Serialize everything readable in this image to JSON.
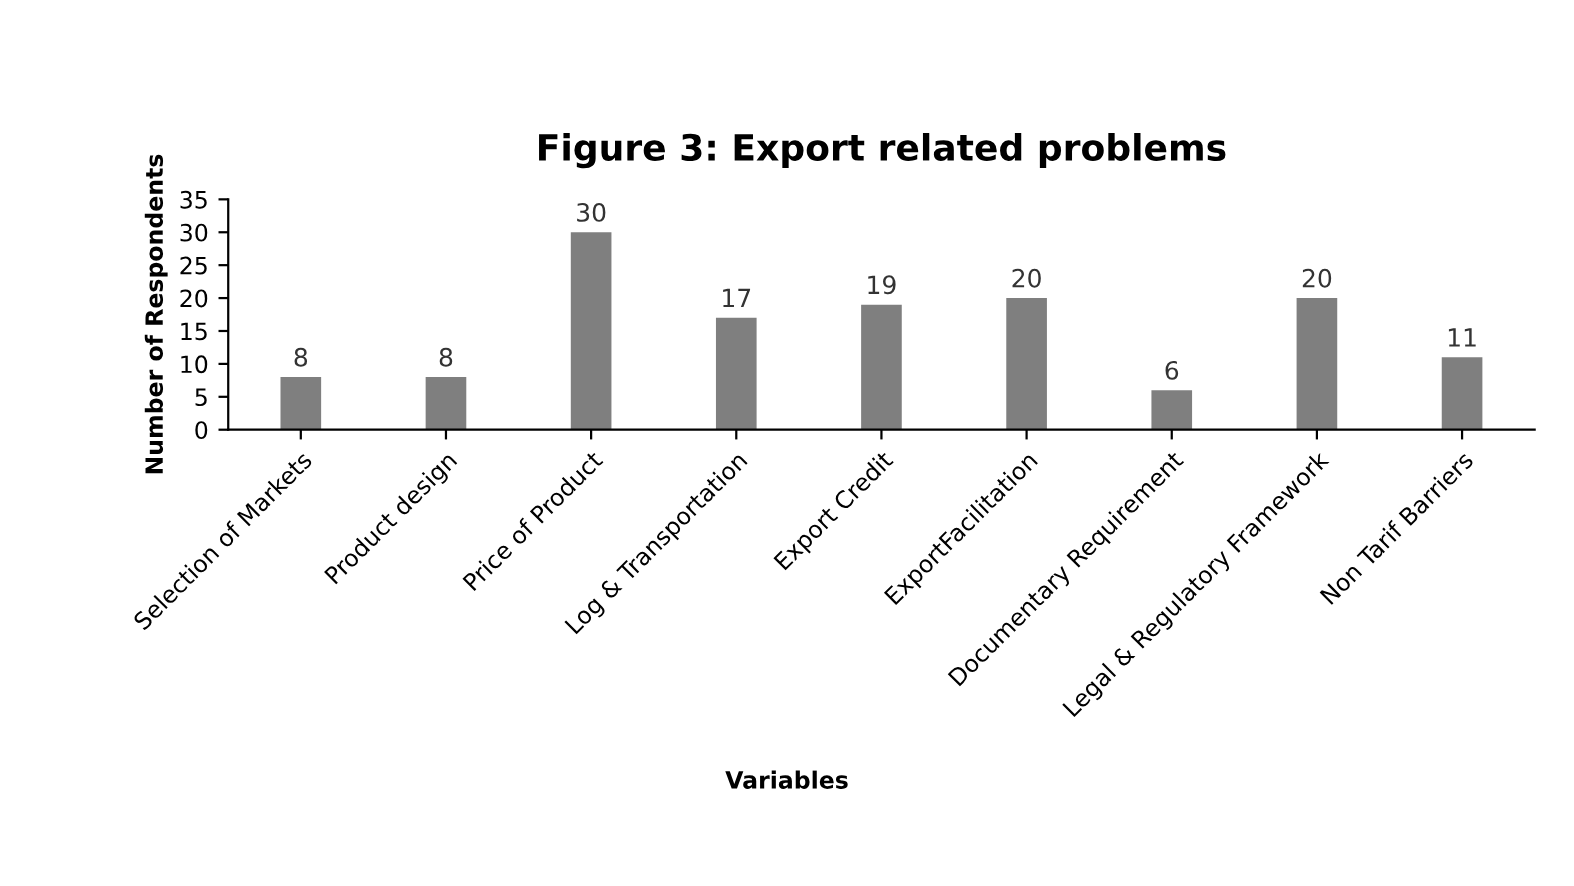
{
  "chart_data": {
    "type": "bar",
    "title": "Figure 3: Export related problems",
    "xlabel": "Variables",
    "ylabel": "Number of Respondents",
    "categories": [
      "Selection of Markets",
      "Product design",
      "Price of Product",
      "Log & Transportation",
      "Export Credit",
      "ExportFacilitation",
      "Documentary Requirement",
      "Legal & Regulatory Framework",
      "Non Tarif Barriers"
    ],
    "values": [
      8,
      8,
      30,
      17,
      19,
      20,
      6,
      20,
      11
    ],
    "color": "#7f7f7f",
    "ylim": [
      0,
      35
    ],
    "yticks": [
      0,
      5,
      10,
      15,
      20,
      25,
      30,
      35
    ],
    "grid": false,
    "data_labels": true
  }
}
